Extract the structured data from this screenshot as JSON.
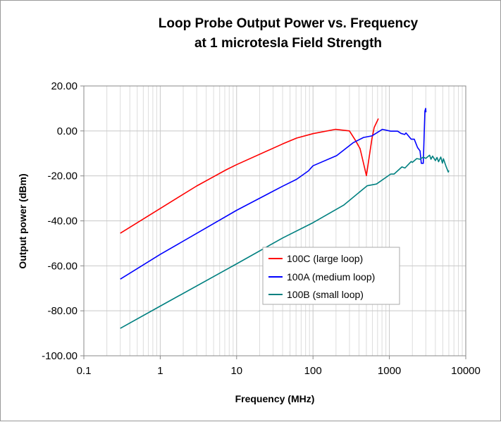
{
  "chart_data": {
    "type": "line",
    "title": [
      "Loop Probe Output Power vs. Frequency",
      "at 1 microtesla Field Strength"
    ],
    "xlabel": "Frequency (MHz)",
    "ylabel": "Output power (dBm)",
    "x_scale": "log",
    "xlim": [
      0.1,
      10000
    ],
    "ylim": [
      -100,
      20
    ],
    "x_ticks": [
      "0.1",
      "1",
      "10",
      "100",
      "1000",
      "10000"
    ],
    "x_tick_values": [
      0.1,
      1,
      10,
      100,
      1000,
      10000
    ],
    "y_ticks": [
      "20.00",
      "0.00",
      "-20.00",
      "-40.00",
      "-60.00",
      "-80.00",
      "-100.00"
    ],
    "y_tick_values": [
      20,
      0,
      -20,
      -40,
      -60,
      -80,
      -100
    ],
    "grid": true,
    "legend_position": "center-right",
    "series": [
      {
        "name": "100C (large loop)",
        "color": "#ff0000",
        "x": [
          0.3,
          1,
          3,
          7.3,
          10,
          40,
          61,
          100,
          196,
          300,
          359,
          413,
          500,
          589,
          632,
          718
        ],
        "y": [
          -45.5,
          -34.5,
          -24.5,
          -17.3,
          -15,
          -5.8,
          -3.2,
          -1.2,
          0.7,
          0,
          -4.2,
          -7.9,
          -19.9,
          -3.7,
          1.5,
          5.5
        ]
      },
      {
        "name": "100A (medium loop)",
        "color": "#0000ff",
        "x": [
          0.3,
          1,
          10,
          40,
          61,
          87,
          100,
          204,
          334,
          459,
          589,
          811,
          1038,
          1283,
          1416,
          1585,
          1650,
          1932,
          2115,
          2340,
          2520,
          2620,
          2776,
          2920,
          2985,
          3010
        ],
        "y": [
          -65.9,
          -54.9,
          -35.3,
          -24.6,
          -21.5,
          -17.8,
          -15.5,
          -11,
          -5.3,
          -2.9,
          -2.2,
          0.7,
          -0.1,
          -0.1,
          -1.1,
          -1.6,
          -0.9,
          -3.7,
          -3.7,
          -7.4,
          -8.9,
          -14.4,
          -14.4,
          8.8,
          10,
          8.3
        ]
      },
      {
        "name": "100B (small loop)",
        "color": "#008080",
        "x": [
          0.3,
          1,
          10,
          40,
          100,
          252,
          511,
          678,
          1038,
          1150,
          1460,
          1600,
          1932,
          2000,
          2280,
          2520,
          2780,
          3000,
          3360,
          3500,
          3680,
          4000,
          4200,
          4400,
          4700,
          4950,
          5100,
          5500,
          5900,
          6000
        ],
        "y": [
          -87.8,
          -77.9,
          -59.1,
          -47.6,
          -40.8,
          -33,
          -24.4,
          -23.6,
          -19.2,
          -19.2,
          -16,
          -16.5,
          -13.6,
          -14,
          -12.3,
          -12.6,
          -11.6,
          -12.2,
          -10.8,
          -12.6,
          -11.2,
          -13.2,
          -11.8,
          -13.7,
          -11.6,
          -14.3,
          -12.4,
          -15.7,
          -18.3,
          -17.6
        ]
      }
    ]
  }
}
